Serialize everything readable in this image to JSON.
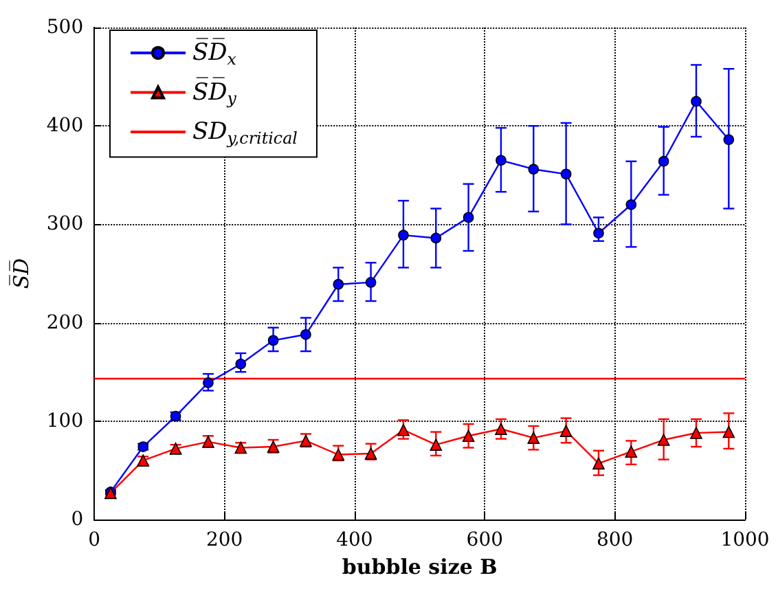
{
  "chart_data": {
    "type": "line",
    "xlabel": "bubble size B",
    "ylabel": "S̅D̅",
    "x": [
      25,
      75,
      125,
      175,
      225,
      275,
      325,
      375,
      425,
      475,
      525,
      575,
      625,
      675,
      725,
      775,
      825,
      875,
      925,
      975
    ],
    "series": [
      {
        "name": "S̅D̅$_{x}$",
        "color": "#0000ff",
        "marker": "circle",
        "values": [
          28,
          74,
          105,
          139,
          158,
          182,
          188,
          239,
          241,
          289,
          286,
          307,
          365,
          356,
          351,
          291,
          320,
          364,
          425,
          386
        ],
        "errors": [
          [
            26,
            30
          ],
          [
            71,
            77
          ],
          [
            101,
            109
          ],
          [
            131,
            148
          ],
          [
            150,
            169
          ],
          [
            171,
            195
          ],
          [
            171,
            205
          ],
          [
            222,
            256
          ],
          [
            222,
            261
          ],
          [
            256,
            324
          ],
          [
            256,
            316
          ],
          [
            273,
            341
          ],
          [
            333,
            398
          ],
          [
            313,
            400
          ],
          [
            300,
            403
          ],
          [
            283,
            307
          ],
          [
            277,
            364
          ],
          [
            330,
            399
          ],
          [
            389,
            462
          ],
          [
            316,
            458
          ]
        ]
      },
      {
        "name": "S̅D̅$_{y}$",
        "color": "#ff0000",
        "marker": "triangle",
        "values": [
          27,
          60,
          72,
          79,
          73,
          74,
          80,
          66,
          67,
          91,
          76,
          85,
          92,
          83,
          90,
          57,
          69,
          81,
          88,
          89
        ],
        "errors": [
          [
            25,
            29
          ],
          [
            56,
            64
          ],
          [
            68,
            76
          ],
          [
            74,
            85
          ],
          [
            68,
            78
          ],
          [
            68,
            81
          ],
          [
            74,
            87
          ],
          [
            60,
            75
          ],
          [
            61,
            77
          ],
          [
            82,
            101
          ],
          [
            65,
            89
          ],
          [
            73,
            97
          ],
          [
            82,
            102
          ],
          [
            71,
            95
          ],
          [
            78,
            103
          ],
          [
            45,
            70
          ],
          [
            56,
            80
          ],
          [
            61,
            102
          ],
          [
            74,
            102
          ],
          [
            72,
            108
          ]
        ]
      }
    ],
    "ref_lines": [
      {
        "axis": "y",
        "value": 144,
        "label": "SD$_{y,critical}$",
        "color": "#ff0000"
      }
    ],
    "xlim": [
      0,
      1000
    ],
    "xticks": [
      0,
      200,
      400,
      600,
      800,
      1000
    ],
    "ylim": [
      0,
      500
    ],
    "yticks": [
      0,
      100,
      200,
      300,
      400,
      500
    ],
    "grid": true,
    "legend": "top left"
  }
}
